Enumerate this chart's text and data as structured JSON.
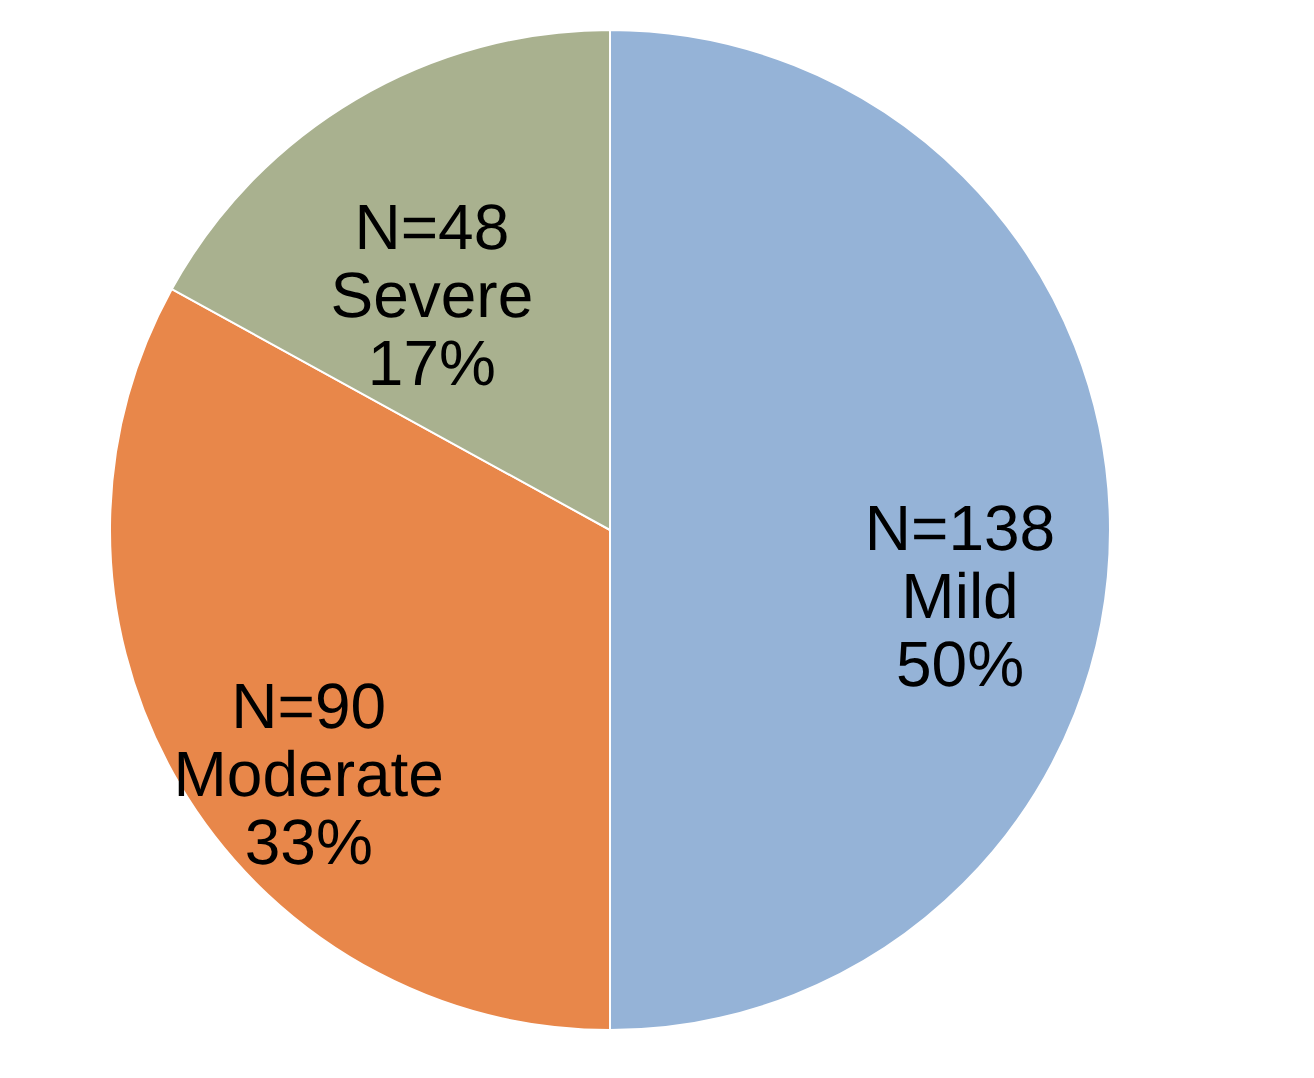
{
  "chart_data": {
    "type": "pie",
    "categories": [
      "Mild",
      "Moderate",
      "Severe"
    ],
    "values": [
      50,
      33,
      17
    ],
    "colors": [
      "#95b3d7",
      "#e8874a",
      "#a9b18f"
    ],
    "value_labels": [
      "N=138\n50%",
      "N=90\n33%",
      "N=48\n17%"
    ],
    "legend": false
  }
}
